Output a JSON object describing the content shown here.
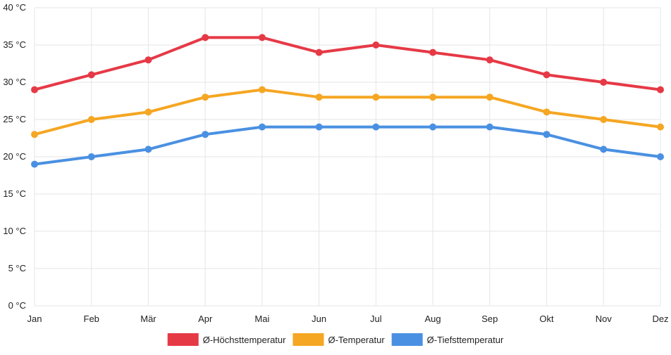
{
  "chart_data": {
    "type": "line",
    "categories": [
      "Jan",
      "Feb",
      "Mär",
      "Apr",
      "Mai",
      "Jun",
      "Jul",
      "Aug",
      "Sep",
      "Okt",
      "Nov",
      "Dez"
    ],
    "y_unit": "°C",
    "ylim": [
      0,
      40
    ],
    "y_ticks": [
      0,
      5,
      10,
      15,
      20,
      25,
      30,
      35,
      40
    ],
    "grid": true,
    "legend_position": "bottom",
    "series": [
      {
        "name": "Ø-Höchsttemperatur",
        "color": "#e63946",
        "values": [
          29,
          31,
          33,
          36,
          36,
          34,
          35,
          34,
          33,
          31,
          30,
          29
        ]
      },
      {
        "name": "Ø-Temperatur",
        "color": "#f5a623",
        "values": [
          23,
          25,
          26,
          28,
          29,
          28,
          28,
          28,
          28,
          26,
          25,
          24
        ]
      },
      {
        "name": "Ø-Tiefsttemperatur",
        "color": "#4a90e2",
        "values": [
          19,
          20,
          21,
          23,
          24,
          24,
          24,
          24,
          24,
          23,
          21,
          20
        ]
      }
    ]
  }
}
